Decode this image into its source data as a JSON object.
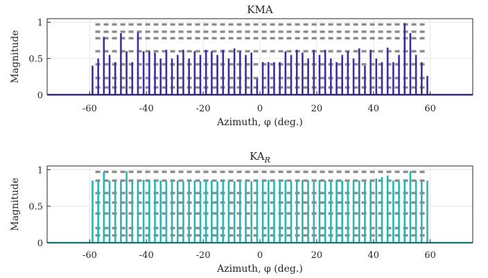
{
  "chart_data": [
    {
      "type": "stem",
      "title": "KMA",
      "title_sub": "",
      "xlabel": "Azimuth, φ (deg.)",
      "ylabel": "Magnitude",
      "xlim": [
        -75,
        75
      ],
      "ylim": [
        0,
        1.05
      ],
      "xticks": [
        -60,
        -40,
        -20,
        0,
        20,
        40,
        60
      ],
      "xtick_labels": [
        "-60",
        "-40",
        "-20",
        "0",
        "20",
        "40",
        "60"
      ],
      "yticks": [
        0,
        0.5,
        1
      ],
      "ytick_labels": [
        "0",
        "0.5",
        "1"
      ],
      "grid": true,
      "color": "#3b2fa0",
      "dash_color": "#8c8c8c",
      "reference_levels": [
        0.1,
        0.23,
        0.42,
        0.6,
        0.78,
        0.87,
        0.97
      ],
      "reference_xrange": [
        -58,
        59
      ],
      "x": [
        -59,
        -57,
        -55,
        -53,
        -51,
        -49,
        -47,
        -45,
        -43,
        -41,
        -39,
        -37,
        -35,
        -33,
        -31,
        -29,
        -27,
        -25,
        -23,
        -21,
        -19,
        -17,
        -15,
        -13,
        -11,
        -9,
        -7,
        -5,
        -3,
        -1,
        1,
        3,
        5,
        7,
        9,
        11,
        13,
        15,
        17,
        19,
        21,
        23,
        25,
        27,
        29,
        31,
        33,
        35,
        37,
        39,
        41,
        43,
        45,
        47,
        49,
        51,
        53,
        55,
        57,
        59
      ],
      "values": [
        0.4,
        0.5,
        0.8,
        0.55,
        0.45,
        0.85,
        0.6,
        0.45,
        0.86,
        0.6,
        0.6,
        0.58,
        0.5,
        0.62,
        0.5,
        0.55,
        0.62,
        0.5,
        0.6,
        0.55,
        0.62,
        0.6,
        0.55,
        0.62,
        0.5,
        0.64,
        0.6,
        0.55,
        0.58,
        0.22,
        0.45,
        0.45,
        0.45,
        0.45,
        0.6,
        0.55,
        0.62,
        0.58,
        0.5,
        0.62,
        0.55,
        0.62,
        0.5,
        0.45,
        0.55,
        0.6,
        0.5,
        0.64,
        0.4,
        0.62,
        0.5,
        0.45,
        0.65,
        0.45,
        0.55,
        0.99,
        0.85,
        0.55,
        0.45,
        0.26
      ]
    },
    {
      "type": "stem",
      "title": "KA",
      "title_sub": "R",
      "xlabel": "Azimuth, φ (deg.)",
      "ylabel": "Magnitude",
      "xlim": [
        -75,
        75
      ],
      "ylim": [
        0,
        1.05
      ],
      "xticks": [
        -60,
        -40,
        -20,
        0,
        20,
        40,
        60
      ],
      "xtick_labels": [
        "-60",
        "-40",
        "-20",
        "0",
        "20",
        "40",
        "60"
      ],
      "yticks": [
        0,
        0.5,
        1
      ],
      "ytick_labels": [
        "0",
        "0.5",
        "1"
      ],
      "grid": true,
      "color": "#2ab5b0",
      "dash_color": "#8c8c8c",
      "reference_levels": [
        0.1,
        0.2,
        0.4,
        0.55,
        0.68,
        0.85,
        0.97
      ],
      "reference_xrange": [
        -58,
        59
      ],
      "x": [
        -59,
        -57,
        -55,
        -53,
        -51,
        -49,
        -47,
        -45,
        -43,
        -41,
        -39,
        -37,
        -35,
        -33,
        -31,
        -29,
        -27,
        -25,
        -23,
        -21,
        -19,
        -17,
        -15,
        -13,
        -11,
        -9,
        -7,
        -5,
        -3,
        -1,
        1,
        3,
        5,
        7,
        9,
        11,
        13,
        15,
        17,
        19,
        21,
        23,
        25,
        27,
        29,
        31,
        33,
        35,
        37,
        39,
        41,
        43,
        45,
        47,
        49,
        51,
        53,
        55,
        57,
        59
      ],
      "values": [
        0.85,
        0.85,
        0.97,
        0.85,
        0.84,
        0.85,
        0.98,
        0.85,
        0.84,
        0.86,
        0.85,
        0.86,
        0.85,
        0.84,
        0.86,
        0.85,
        0.84,
        0.86,
        0.85,
        0.84,
        0.86,
        0.85,
        0.84,
        0.86,
        0.85,
        0.84,
        0.86,
        0.85,
        0.84,
        0.86,
        0.85,
        0.86,
        0.84,
        0.85,
        0.86,
        0.84,
        0.85,
        0.86,
        0.85,
        0.84,
        0.86,
        0.85,
        0.84,
        0.86,
        0.85,
        0.84,
        0.86,
        0.85,
        0.84,
        0.86,
        0.88,
        0.9,
        0.92,
        0.85,
        0.84,
        0.86,
        0.98,
        0.85,
        0.84,
        0.85
      ]
    }
  ]
}
